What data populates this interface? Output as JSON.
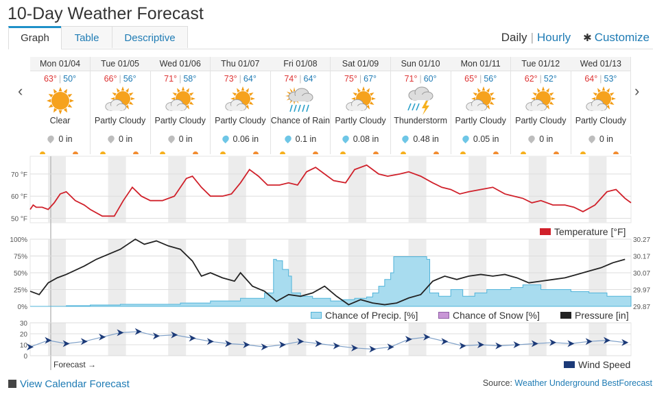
{
  "title": "10-Day Weather Forecast",
  "tabs": [
    {
      "label": "Graph",
      "active": true
    },
    {
      "label": "Table",
      "active": false
    },
    {
      "label": "Descriptive",
      "active": false
    }
  ],
  "view": {
    "daily": "Daily",
    "separator": "|",
    "hourly": "Hourly",
    "customize": "Customize"
  },
  "days": [
    {
      "date": "Mon 01/04",
      "hi": "63°",
      "lo": "50°",
      "icon": "sun-icon",
      "cond": "Clear",
      "precip": "0 in",
      "drop": "snow"
    },
    {
      "date": "Tue 01/05",
      "hi": "66°",
      "lo": "56°",
      "icon": "partly-cloudy-icon",
      "cond": "Partly Cloudy",
      "precip": "0 in",
      "drop": "snow"
    },
    {
      "date": "Wed 01/06",
      "hi": "71°",
      "lo": "58°",
      "icon": "partly-cloudy-icon",
      "cond": "Partly Cloudy",
      "precip": "0 in",
      "drop": "snow"
    },
    {
      "date": "Thu 01/07",
      "hi": "73°",
      "lo": "64°",
      "icon": "partly-cloudy-icon",
      "cond": "Partly Cloudy",
      "precip": "0.06 in",
      "drop": "rain"
    },
    {
      "date": "Fri 01/08",
      "hi": "74°",
      "lo": "64°",
      "icon": "rain-icon",
      "cond": "Chance of Rain",
      "precip": "0.1 in",
      "drop": "rain"
    },
    {
      "date": "Sat 01/09",
      "hi": "75°",
      "lo": "67°",
      "icon": "partly-cloudy-icon",
      "cond": "Partly Cloudy",
      "precip": "0.08 in",
      "drop": "rain"
    },
    {
      "date": "Sun 01/10",
      "hi": "71°",
      "lo": "60°",
      "icon": "thunderstorm-icon",
      "cond": "Thunderstorm",
      "precip": "0.48 in",
      "drop": "rain"
    },
    {
      "date": "Mon 01/11",
      "hi": "65°",
      "lo": "56°",
      "icon": "partly-cloudy-icon",
      "cond": "Partly Cloudy",
      "precip": "0.05 in",
      "drop": "rain"
    },
    {
      "date": "Tue 01/12",
      "hi": "62°",
      "lo": "52°",
      "icon": "partly-cloudy-icon",
      "cond": "Partly Cloudy",
      "precip": "0 in",
      "drop": "snow"
    },
    {
      "date": "Wed 01/13",
      "hi": "64°",
      "lo": "53°",
      "icon": "partly-cloudy-icon",
      "cond": "Partly Cloudy",
      "precip": "0 in",
      "drop": "snow"
    }
  ],
  "colors": {
    "temperature": "#d0202a",
    "precip_fill": "#a8dcef",
    "precip_line": "#4fb3d9",
    "snow": "#c896d6",
    "pressure": "#222222",
    "wind": "#1c3a78",
    "link": "#1e7bb4"
  },
  "charts": {
    "temperature": {
      "y_ticks": [
        "70 °F",
        "60 °F",
        "50 °F"
      ],
      "legend": "Temperature [°F]"
    },
    "precip": {
      "y_ticks_left": [
        "100%",
        "75%",
        "50%",
        "25%",
        "0%"
      ],
      "y_ticks_right": [
        "30.27",
        "30.17",
        "30.07",
        "29.97",
        "29.87"
      ],
      "legend_precip": "Chance of Precip. [%]",
      "legend_snow": "Chance of Snow [%]",
      "legend_pressure": "Pressure [in]"
    },
    "wind": {
      "y_ticks": [
        "30",
        "20",
        "10",
        "0"
      ],
      "legend": "Wind Speed"
    }
  },
  "chart_data": [
    {
      "type": "line",
      "series": [
        {
          "name": "Temperature [°F]",
          "x_days": [
            0,
            0.05,
            0.1,
            0.2,
            0.3,
            0.4,
            0.5,
            0.6,
            0.75,
            0.9,
            1.0,
            1.2,
            1.4,
            1.55,
            1.7,
            1.85,
            2.0,
            2.2,
            2.4,
            2.6,
            2.7,
            2.85,
            3.0,
            3.2,
            3.35,
            3.5,
            3.65,
            3.8,
            3.95,
            4.15,
            4.3,
            4.45,
            4.6,
            4.75,
            4.9,
            5.05,
            5.25,
            5.4,
            5.6,
            5.8,
            5.95,
            6.15,
            6.3,
            6.5,
            6.7,
            6.85,
            7.0,
            7.15,
            7.3,
            7.5,
            7.7,
            7.9,
            8.05,
            8.2,
            8.35,
            8.5,
            8.7,
            8.9,
            9.05,
            9.2,
            9.4,
            9.6,
            9.75,
            9.9,
            10.0
          ],
          "values": [
            54,
            56,
            55,
            55,
            54,
            57,
            61,
            62,
            58,
            56,
            54,
            51,
            51,
            58,
            64,
            60,
            58,
            58,
            60,
            68,
            69,
            64,
            60,
            60,
            61,
            66,
            72,
            69,
            65,
            65,
            66,
            65,
            71,
            73,
            70,
            67,
            66,
            72,
            74,
            70,
            69,
            70,
            71,
            69,
            66,
            64,
            63,
            61,
            62,
            63,
            64,
            61,
            60,
            59,
            57,
            58,
            56,
            56,
            55,
            53,
            56,
            62,
            63,
            59,
            57
          ]
        }
      ],
      "ylim": [
        48,
        78
      ]
    },
    {
      "type": "area",
      "series": [
        {
          "name": "Chance of Precip. [%]",
          "x_days": [
            0,
            0.3,
            0.6,
            1.0,
            1.5,
            2.0,
            2.5,
            3.0,
            3.5,
            3.9,
            4.05,
            4.1,
            4.2,
            4.3,
            4.35,
            4.5,
            4.7,
            5.0,
            5.2,
            5.4,
            5.6,
            5.7,
            5.8,
            5.9,
            6.0,
            6.05,
            6.6,
            6.65,
            6.8,
            7.0,
            7.2,
            7.4,
            7.6,
            7.8,
            8.0,
            8.2,
            8.5,
            8.8,
            9.0,
            9.3,
            9.6,
            10.0
          ],
          "values": [
            0,
            0,
            1,
            2,
            3,
            3,
            5,
            8,
            12,
            20,
            70,
            68,
            55,
            45,
            20,
            15,
            12,
            8,
            10,
            12,
            14,
            20,
            30,
            40,
            50,
            74,
            70,
            20,
            15,
            25,
            15,
            20,
            25,
            25,
            28,
            32,
            25,
            25,
            22,
            20,
            15,
            12
          ]
        },
        {
          "name": "Pressure [in]",
          "x_days": [
            0,
            0.15,
            0.3,
            0.45,
            0.6,
            0.9,
            1.1,
            1.3,
            1.5,
            1.75,
            1.9,
            2.1,
            2.3,
            2.5,
            2.7,
            2.85,
            3.0,
            3.2,
            3.4,
            3.5,
            3.7,
            3.9,
            4.1,
            4.3,
            4.5,
            4.7,
            4.9,
            5.1,
            5.3,
            5.5,
            5.7,
            5.9,
            6.1,
            6.3,
            6.5,
            6.7,
            6.9,
            7.1,
            7.3,
            7.5,
            7.7,
            7.9,
            8.1,
            8.3,
            8.5,
            8.7,
            8.9,
            9.1,
            9.3,
            9.5,
            9.7,
            9.9
          ],
          "values": [
            29.96,
            29.94,
            30.01,
            30.04,
            30.06,
            30.11,
            30.15,
            30.18,
            30.21,
            30.27,
            30.24,
            30.26,
            30.23,
            30.21,
            30.14,
            30.05,
            30.07,
            30.04,
            30.02,
            30.07,
            29.99,
            29.96,
            29.9,
            29.94,
            29.93,
            29.95,
            29.99,
            29.93,
            29.88,
            29.91,
            29.89,
            29.88,
            29.89,
            29.92,
            29.94,
            30.02,
            30.05,
            30.03,
            30.05,
            30.06,
            30.05,
            30.06,
            30.04,
            30.01,
            30.02,
            30.03,
            30.04,
            30.06,
            30.08,
            30.1,
            30.13,
            30.15
          ]
        }
      ]
    },
    {
      "type": "line",
      "series": [
        {
          "name": "Wind Speed",
          "x_days": [
            0,
            0.3,
            0.6,
            0.9,
            1.2,
            1.5,
            1.8,
            2.1,
            2.4,
            2.7,
            3.0,
            3.3,
            3.6,
            3.9,
            4.2,
            4.5,
            4.8,
            5.1,
            5.4,
            5.7,
            6.0,
            6.3,
            6.6,
            6.9,
            7.2,
            7.5,
            7.8,
            8.1,
            8.4,
            8.7,
            9.0,
            9.3,
            9.6,
            9.9
          ],
          "values": [
            8,
            14,
            11,
            13,
            17,
            21,
            22,
            18,
            19,
            16,
            13,
            11,
            10,
            8,
            10,
            13,
            11,
            9,
            7,
            6,
            8,
            15,
            17,
            13,
            9,
            10,
            9,
            10,
            11,
            12,
            11,
            13,
            14,
            12
          ]
        }
      ],
      "ylim": [
        0,
        30
      ]
    }
  ],
  "forecast_label": "Forecast →",
  "footer": {
    "calendar_link": "View Calendar Forecast",
    "source_prefix": "Source:",
    "source_link": "Weather Underground BestForecast"
  }
}
